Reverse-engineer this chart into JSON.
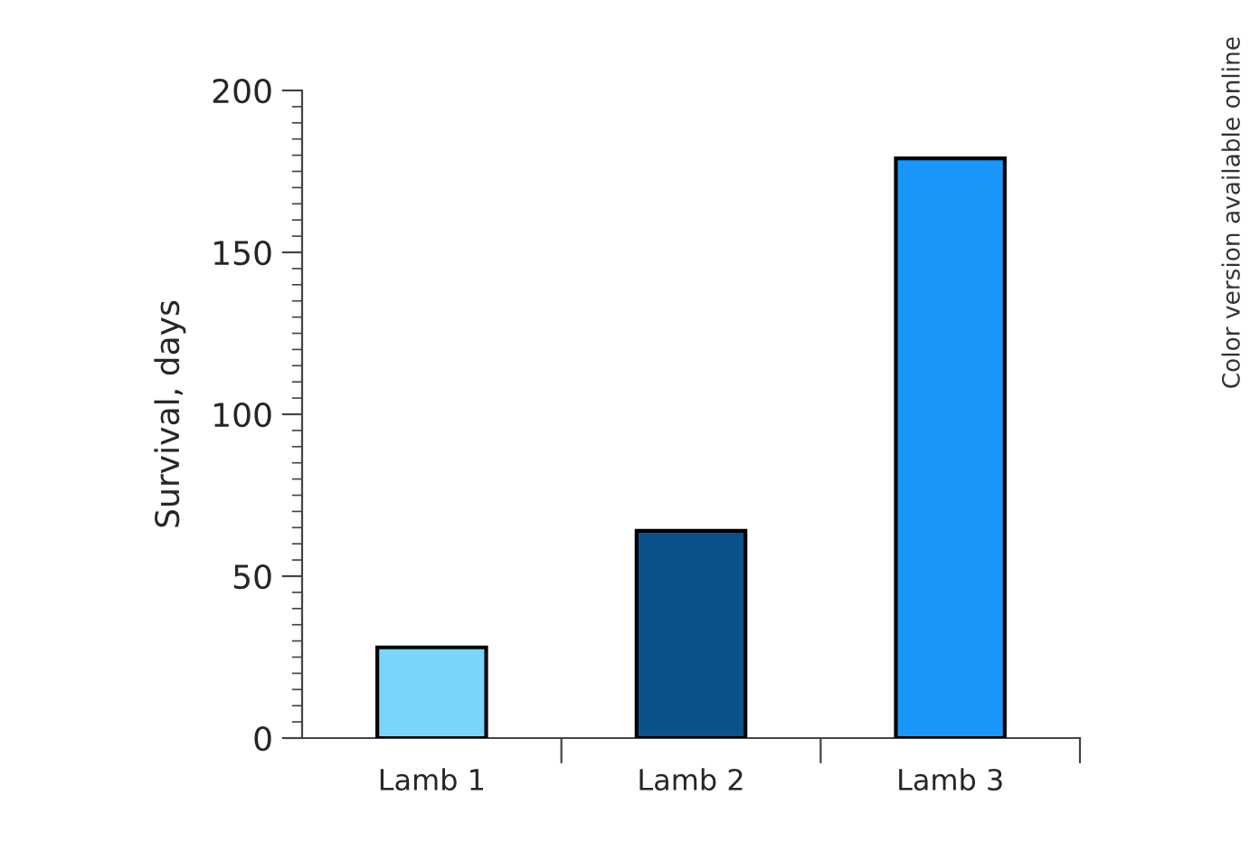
{
  "chart_data": {
    "type": "bar",
    "ylabel": "Survival, days",
    "categories": [
      "Lamb 1",
      "Lamb 2",
      "Lamb 3"
    ],
    "values": [
      28,
      64,
      179
    ],
    "colors": [
      "#7ad5fc",
      "#0b528c",
      "#1b97fb"
    ],
    "ylim": [
      0,
      200
    ],
    "yticks": [
      0,
      50,
      100,
      150,
      200
    ],
    "grid": false,
    "annotations": [
      "Color version available online"
    ]
  }
}
